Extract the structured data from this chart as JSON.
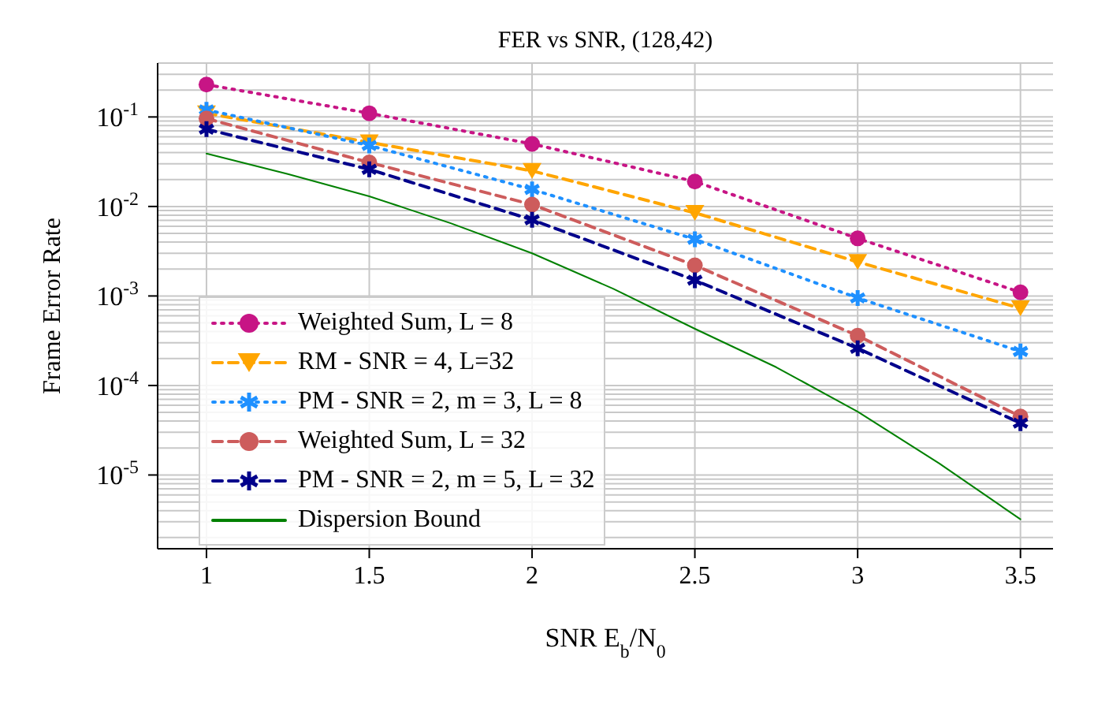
{
  "chart_data": {
    "type": "line",
    "title": "FER vs SNR, (128,42)",
    "xlabel": "SNR E$_{b}$/N$_{0}$",
    "ylabel": "Frame Error Rate",
    "x": [
      1,
      1.5,
      2,
      2.5,
      3,
      3.5
    ],
    "xlim": [
      0.85,
      3.6
    ],
    "xticks": [
      1,
      1.5,
      2,
      2.5,
      3,
      3.5
    ],
    "ylim": [
      1.5e-06,
      0.4
    ],
    "yticks": [
      {
        "value": 0.1,
        "label": "10$^{-1}$"
      },
      {
        "value": 0.01,
        "label": "10$^{-2}$"
      },
      {
        "value": 0.001,
        "label": "10$^{-3}$"
      },
      {
        "value": 0.0001,
        "label": "10$^{-4}$"
      },
      {
        "value": 1e-05,
        "label": "10$^{-5}$"
      }
    ],
    "log": "y",
    "grid": true,
    "legend": "bottom left",
    "series": [
      {
        "name": "Weighted Sum, L = 8",
        "color": "#c71585",
        "marker": "circle",
        "line_style": "dotted",
        "values": [
          0.23,
          0.11,
          0.05,
          0.019,
          0.0044,
          0.0011
        ]
      },
      {
        "name": "RM - SNR = 4, L=32",
        "color": "#ffa500",
        "marker": "triangle",
        "line_style": "dashed",
        "values": [
          0.11,
          0.052,
          0.025,
          0.0085,
          0.0024,
          0.00073
        ]
      },
      {
        "name": "PM - SNR = 2, m = 3, L = 8",
        "color": "#1e90ff",
        "marker": "cross",
        "line_style": "dotted",
        "values": [
          0.12,
          0.048,
          0.0155,
          0.0043,
          0.00095,
          0.00024
        ]
      },
      {
        "name": "Weighted Sum, L = 32",
        "color": "#cd5c5c",
        "marker": "circle",
        "line_style": "dashed",
        "values": [
          0.096,
          0.031,
          0.0105,
          0.0022,
          0.00036,
          4.5e-05
        ]
      },
      {
        "name": "PM - SNR = 2, m = 5, L = 32",
        "color": "#00008b",
        "marker": "cross",
        "line_style": "dashed",
        "values": [
          0.073,
          0.026,
          0.0071,
          0.0015,
          0.00026,
          3.8e-05
        ]
      },
      {
        "name": "Dispersion Bound",
        "color": "#008000",
        "marker": "none",
        "line_style": "solid",
        "x": [
          1,
          1.25,
          1.5,
          1.75,
          2,
          2.25,
          2.5,
          2.75,
          3,
          3.25,
          3.5
        ],
        "values": [
          0.039,
          0.023,
          0.013,
          0.0065,
          0.003,
          0.0012,
          0.00043,
          0.00016,
          5.1e-05,
          1.35e-05,
          3.2e-06
        ]
      }
    ]
  }
}
